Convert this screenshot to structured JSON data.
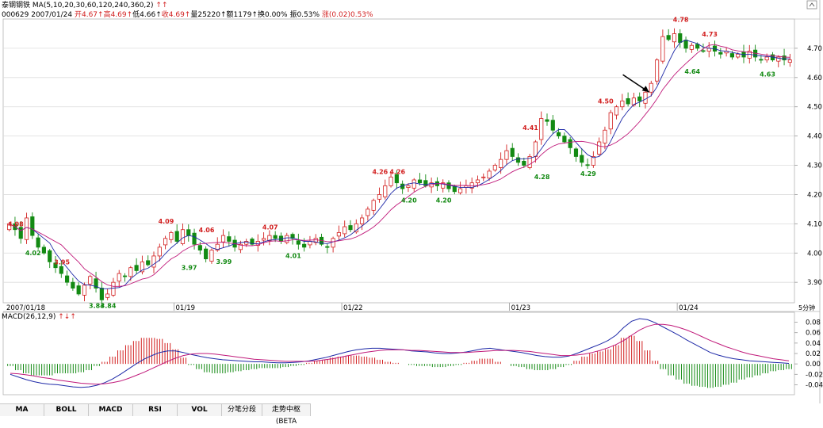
{
  "header": {
    "stock_name": "泰钢钢铁",
    "ma_label": "MA(5,10,20,30,60,120,240,360,2)",
    "ma_arrows": "↑↑",
    "code": "000629",
    "date": "2007/01/24",
    "open_label": "开4.67↑",
    "high_label": "高4.69↑",
    "low_label": "低4.66↑",
    "close_label": "收4.69↑",
    "volume_label": "量25220↑",
    "amount_label": "额1179↑",
    "turnover_label": "换0.00%",
    "amplitude_label": "振0.53%",
    "change_label": "涨(0.02)0.53%"
  },
  "macd_label": "MACD(26,12,9)",
  "macd_arrows": "↑↓↑",
  "period_label": "5分钟",
  "tabs": [
    "MA",
    "BOLL",
    "MACD",
    "RSI",
    "VOL",
    "分笔分段",
    "走势中枢(BETA"
  ],
  "colors": {
    "up": "#d21f1f",
    "down": "#138a13",
    "ma_fast": "#1f2aa8",
    "ma_slow": "#c0197a",
    "label_up": "#d21f1f",
    "label_down": "#138a13"
  },
  "chart_data": [
    {
      "type": "candlestick",
      "x_labels": [
        "2007/01/18",
        "01/19",
        "01/22",
        "01/23",
        "01/24"
      ],
      "y_ticks": [
        "3.90",
        "4.00",
        "4.10",
        "4.20",
        "4.30",
        "4.40",
        "4.50",
        "4.60",
        "4.70"
      ],
      "ylim": [
        3.83,
        4.8
      ],
      "closes": [
        4.1,
        4.08,
        4.05,
        4.12,
        4.06,
        4.02,
        4.0,
        3.97,
        3.95,
        3.93,
        3.9,
        3.88,
        3.86,
        3.89,
        3.92,
        3.88,
        3.84,
        3.86,
        3.9,
        3.93,
        3.92,
        3.95,
        3.94,
        3.97,
        3.96,
        3.99,
        4.02,
        4.05,
        4.07,
        4.04,
        4.08,
        4.06,
        4.03,
        4.01,
        3.98,
        4.01,
        4.03,
        4.06,
        4.04,
        4.02,
        4.03,
        4.04,
        4.03,
        4.04,
        4.05,
        4.06,
        4.05,
        4.04,
        4.06,
        4.05,
        4.03,
        4.02,
        4.04,
        4.05,
        4.03,
        4.02,
        4.05,
        4.07,
        4.09,
        4.08,
        4.1,
        4.12,
        4.15,
        4.18,
        4.2,
        4.23,
        4.26,
        4.24,
        4.22,
        4.23,
        4.25,
        4.24,
        4.23,
        4.24,
        4.23,
        4.24,
        4.22,
        4.21,
        4.22,
        4.23,
        4.24,
        4.25,
        4.26,
        4.28,
        4.3,
        4.32,
        4.35,
        4.33,
        4.31,
        4.3,
        4.33,
        4.38,
        4.46,
        4.45,
        4.42,
        4.4,
        4.38,
        4.36,
        4.33,
        4.31,
        4.3,
        4.33,
        4.38,
        4.42,
        4.48,
        4.5,
        4.52,
        4.51,
        4.53,
        4.52,
        4.55,
        4.58,
        4.66,
        4.74,
        4.73,
        4.75,
        4.72,
        4.7,
        4.71,
        4.7,
        4.69,
        4.7,
        4.69,
        4.68,
        4.69,
        4.67,
        4.68,
        4.67,
        4.69,
        4.67,
        4.66,
        4.67,
        4.66,
        4.67,
        4.66,
        4.66
      ],
      "annotations": [
        {
          "text": "4.08",
          "value": 4.08,
          "kind": "high"
        },
        {
          "text": "4.02",
          "value": 4.02,
          "kind": "low"
        },
        {
          "text": "3.95",
          "value": 3.95,
          "kind": "high"
        },
        {
          "text": "3.84",
          "value": 3.84,
          "kind": "low"
        },
        {
          "text": "3.84",
          "value": 3.84,
          "kind": "low"
        },
        {
          "text": "4.09",
          "value": 4.09,
          "kind": "high"
        },
        {
          "text": "3.97",
          "value": 3.97,
          "kind": "low"
        },
        {
          "text": "4.06",
          "value": 4.06,
          "kind": "high"
        },
        {
          "text": "3.99",
          "value": 3.99,
          "kind": "low"
        },
        {
          "text": "4.07",
          "value": 4.07,
          "kind": "high"
        },
        {
          "text": "4.01",
          "value": 4.01,
          "kind": "low"
        },
        {
          "text": "4.26",
          "value": 4.26,
          "kind": "high"
        },
        {
          "text": "4.26",
          "value": 4.26,
          "kind": "high"
        },
        {
          "text": "4.20",
          "value": 4.2,
          "kind": "low"
        },
        {
          "text": "4.20",
          "value": 4.2,
          "kind": "low"
        },
        {
          "text": "4.41",
          "value": 4.41,
          "kind": "high"
        },
        {
          "text": "4.28",
          "value": 4.28,
          "kind": "low"
        },
        {
          "text": "4.50",
          "value": 4.5,
          "kind": "high"
        },
        {
          "text": "4.29",
          "value": 4.29,
          "kind": "low"
        },
        {
          "text": "4.78",
          "value": 4.78,
          "kind": "high"
        },
        {
          "text": "4.73",
          "value": 4.73,
          "kind": "high"
        },
        {
          "text": "4.64",
          "value": 4.64,
          "kind": "low"
        },
        {
          "text": "4.63",
          "value": 4.63,
          "kind": "low"
        }
      ]
    },
    {
      "type": "macd",
      "y_ticks": [
        "0.08",
        "0.06",
        "0.04",
        "0.02",
        "0.00",
        "-0.02",
        "-0.04"
      ],
      "ylim": [
        -0.05,
        0.09
      ],
      "dif": [
        -0.02,
        -0.025,
        -0.03,
        -0.034,
        -0.037,
        -0.039,
        -0.04,
        -0.042,
        -0.044,
        -0.045,
        -0.044,
        -0.041,
        -0.036,
        -0.029,
        -0.02,
        -0.01,
        0.0,
        0.009,
        0.016,
        0.022,
        0.025,
        0.025,
        0.022,
        0.018,
        0.015,
        0.012,
        0.01,
        0.008,
        0.007,
        0.006,
        0.005,
        0.004,
        0.004,
        0.003,
        0.002,
        0.002,
        0.003,
        0.004,
        0.006,
        0.009,
        0.012,
        0.016,
        0.02,
        0.024,
        0.027,
        0.029,
        0.03,
        0.03,
        0.029,
        0.028,
        0.027,
        0.025,
        0.024,
        0.023,
        0.021,
        0.02,
        0.02,
        0.021,
        0.023,
        0.026,
        0.029,
        0.03,
        0.028,
        0.026,
        0.024,
        0.022,
        0.019,
        0.016,
        0.014,
        0.013,
        0.013,
        0.015,
        0.02,
        0.026,
        0.032,
        0.038,
        0.045,
        0.055,
        0.07,
        0.082,
        0.087,
        0.085,
        0.079,
        0.071,
        0.063,
        0.055,
        0.046,
        0.038,
        0.03,
        0.022,
        0.017,
        0.013,
        0.01,
        0.008,
        0.006,
        0.005,
        0.004,
        0.003,
        0.002,
        0.001
      ],
      "dea": [
        -0.018,
        -0.019,
        -0.021,
        -0.023,
        -0.026,
        -0.028,
        -0.031,
        -0.033,
        -0.035,
        -0.037,
        -0.038,
        -0.039,
        -0.038,
        -0.036,
        -0.033,
        -0.028,
        -0.022,
        -0.016,
        -0.009,
        -0.002,
        0.005,
        0.011,
        0.016,
        0.019,
        0.02,
        0.02,
        0.019,
        0.017,
        0.015,
        0.013,
        0.011,
        0.009,
        0.008,
        0.007,
        0.006,
        0.005,
        0.005,
        0.005,
        0.005,
        0.006,
        0.008,
        0.01,
        0.013,
        0.016,
        0.019,
        0.022,
        0.024,
        0.026,
        0.027,
        0.027,
        0.027,
        0.026,
        0.026,
        0.025,
        0.024,
        0.023,
        0.022,
        0.022,
        0.022,
        0.023,
        0.024,
        0.025,
        0.026,
        0.026,
        0.026,
        0.025,
        0.024,
        0.022,
        0.02,
        0.018,
        0.016,
        0.016,
        0.017,
        0.019,
        0.022,
        0.026,
        0.031,
        0.037,
        0.045,
        0.055,
        0.065,
        0.072,
        0.076,
        0.076,
        0.074,
        0.07,
        0.065,
        0.059,
        0.052,
        0.045,
        0.039,
        0.033,
        0.028,
        0.023,
        0.019,
        0.016,
        0.013,
        0.01,
        0.008,
        0.006
      ]
    }
  ]
}
